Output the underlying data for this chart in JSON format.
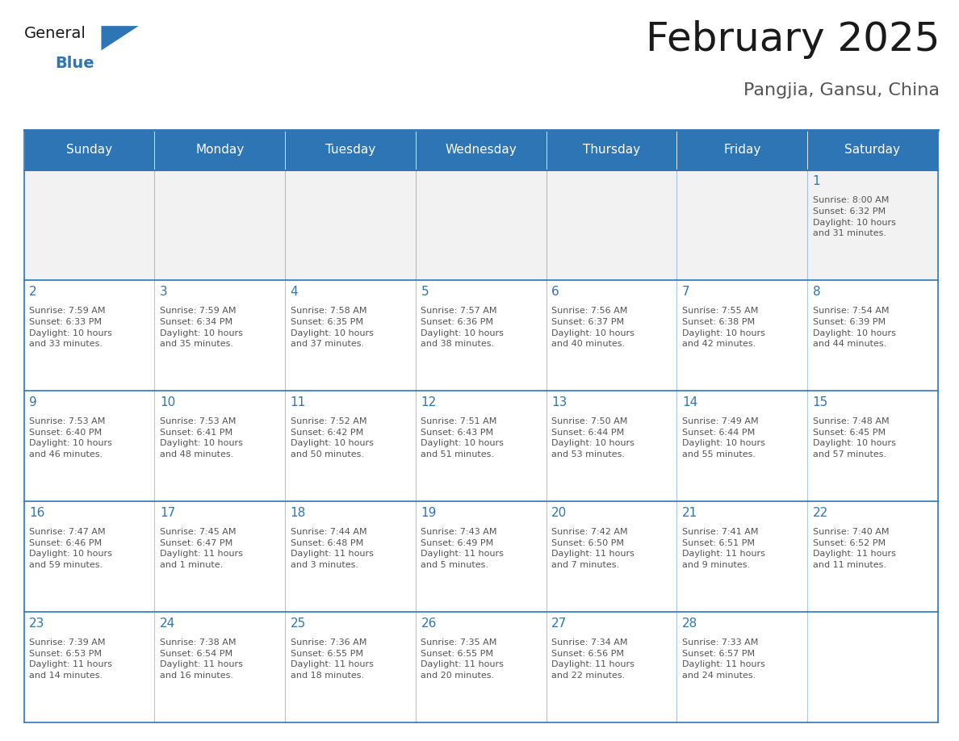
{
  "title": "February 2025",
  "subtitle": "Pangjia, Gansu, China",
  "header_bg": "#2E75B6",
  "header_text_color": "#FFFFFF",
  "cell_bg": "#FFFFFF",
  "row1_bg": "#F2F2F2",
  "border_color": "#2E75B6",
  "day_number_color": "#2E75B6",
  "info_text_color": "#555555",
  "days_of_week": [
    "Sunday",
    "Monday",
    "Tuesday",
    "Wednesday",
    "Thursday",
    "Friday",
    "Saturday"
  ],
  "weeks": [
    [
      {
        "day": null,
        "info": ""
      },
      {
        "day": null,
        "info": ""
      },
      {
        "day": null,
        "info": ""
      },
      {
        "day": null,
        "info": ""
      },
      {
        "day": null,
        "info": ""
      },
      {
        "day": null,
        "info": ""
      },
      {
        "day": 1,
        "info": "Sunrise: 8:00 AM\nSunset: 6:32 PM\nDaylight: 10 hours\nand 31 minutes."
      }
    ],
    [
      {
        "day": 2,
        "info": "Sunrise: 7:59 AM\nSunset: 6:33 PM\nDaylight: 10 hours\nand 33 minutes."
      },
      {
        "day": 3,
        "info": "Sunrise: 7:59 AM\nSunset: 6:34 PM\nDaylight: 10 hours\nand 35 minutes."
      },
      {
        "day": 4,
        "info": "Sunrise: 7:58 AM\nSunset: 6:35 PM\nDaylight: 10 hours\nand 37 minutes."
      },
      {
        "day": 5,
        "info": "Sunrise: 7:57 AM\nSunset: 6:36 PM\nDaylight: 10 hours\nand 38 minutes."
      },
      {
        "day": 6,
        "info": "Sunrise: 7:56 AM\nSunset: 6:37 PM\nDaylight: 10 hours\nand 40 minutes."
      },
      {
        "day": 7,
        "info": "Sunrise: 7:55 AM\nSunset: 6:38 PM\nDaylight: 10 hours\nand 42 minutes."
      },
      {
        "day": 8,
        "info": "Sunrise: 7:54 AM\nSunset: 6:39 PM\nDaylight: 10 hours\nand 44 minutes."
      }
    ],
    [
      {
        "day": 9,
        "info": "Sunrise: 7:53 AM\nSunset: 6:40 PM\nDaylight: 10 hours\nand 46 minutes."
      },
      {
        "day": 10,
        "info": "Sunrise: 7:53 AM\nSunset: 6:41 PM\nDaylight: 10 hours\nand 48 minutes."
      },
      {
        "day": 11,
        "info": "Sunrise: 7:52 AM\nSunset: 6:42 PM\nDaylight: 10 hours\nand 50 minutes."
      },
      {
        "day": 12,
        "info": "Sunrise: 7:51 AM\nSunset: 6:43 PM\nDaylight: 10 hours\nand 51 minutes."
      },
      {
        "day": 13,
        "info": "Sunrise: 7:50 AM\nSunset: 6:44 PM\nDaylight: 10 hours\nand 53 minutes."
      },
      {
        "day": 14,
        "info": "Sunrise: 7:49 AM\nSunset: 6:44 PM\nDaylight: 10 hours\nand 55 minutes."
      },
      {
        "day": 15,
        "info": "Sunrise: 7:48 AM\nSunset: 6:45 PM\nDaylight: 10 hours\nand 57 minutes."
      }
    ],
    [
      {
        "day": 16,
        "info": "Sunrise: 7:47 AM\nSunset: 6:46 PM\nDaylight: 10 hours\nand 59 minutes."
      },
      {
        "day": 17,
        "info": "Sunrise: 7:45 AM\nSunset: 6:47 PM\nDaylight: 11 hours\nand 1 minute."
      },
      {
        "day": 18,
        "info": "Sunrise: 7:44 AM\nSunset: 6:48 PM\nDaylight: 11 hours\nand 3 minutes."
      },
      {
        "day": 19,
        "info": "Sunrise: 7:43 AM\nSunset: 6:49 PM\nDaylight: 11 hours\nand 5 minutes."
      },
      {
        "day": 20,
        "info": "Sunrise: 7:42 AM\nSunset: 6:50 PM\nDaylight: 11 hours\nand 7 minutes."
      },
      {
        "day": 21,
        "info": "Sunrise: 7:41 AM\nSunset: 6:51 PM\nDaylight: 11 hours\nand 9 minutes."
      },
      {
        "day": 22,
        "info": "Sunrise: 7:40 AM\nSunset: 6:52 PM\nDaylight: 11 hours\nand 11 minutes."
      }
    ],
    [
      {
        "day": 23,
        "info": "Sunrise: 7:39 AM\nSunset: 6:53 PM\nDaylight: 11 hours\nand 14 minutes."
      },
      {
        "day": 24,
        "info": "Sunrise: 7:38 AM\nSunset: 6:54 PM\nDaylight: 11 hours\nand 16 minutes."
      },
      {
        "day": 25,
        "info": "Sunrise: 7:36 AM\nSunset: 6:55 PM\nDaylight: 11 hours\nand 18 minutes."
      },
      {
        "day": 26,
        "info": "Sunrise: 7:35 AM\nSunset: 6:55 PM\nDaylight: 11 hours\nand 20 minutes."
      },
      {
        "day": 27,
        "info": "Sunrise: 7:34 AM\nSunset: 6:56 PM\nDaylight: 11 hours\nand 22 minutes."
      },
      {
        "day": 28,
        "info": "Sunrise: 7:33 AM\nSunset: 6:57 PM\nDaylight: 11 hours\nand 24 minutes."
      },
      {
        "day": null,
        "info": ""
      }
    ]
  ],
  "logo_text_general": "General",
  "logo_text_blue": "Blue",
  "logo_triangle_color": "#2E75B6",
  "fig_width": 11.88,
  "fig_height": 9.18,
  "title_fontsize": 36,
  "subtitle_fontsize": 16,
  "header_fontsize": 11,
  "day_num_fontsize": 11,
  "info_fontsize": 8
}
